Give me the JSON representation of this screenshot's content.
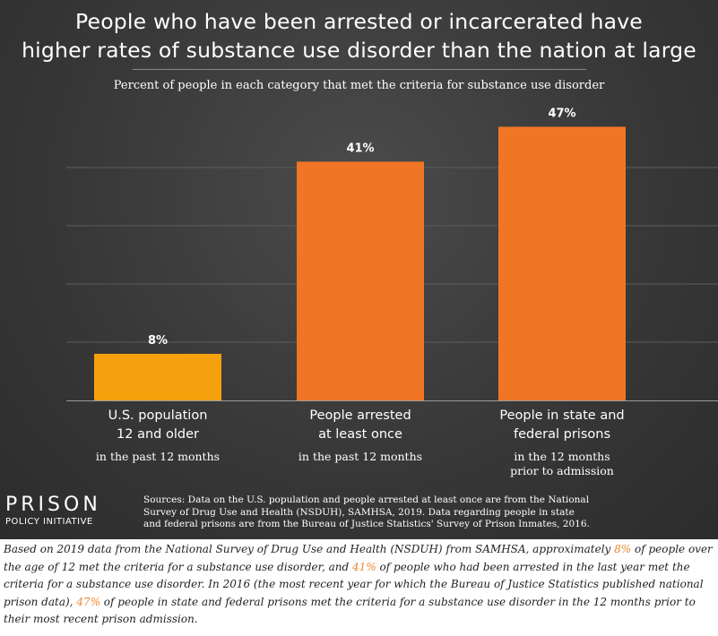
{
  "chart_data": {
    "type": "bar",
    "title_lines": [
      "People who have been arrested or incarcerated have",
      "higher rates of substance use disorder than the nation at large"
    ],
    "subtitle": "Percent of people in each category that met the criteria for substance use disorder",
    "categories": [
      "U.S. population 12 and older",
      "People arrested at least once",
      "People in state and federal prisons"
    ],
    "values": [
      8,
      41,
      47
    ],
    "value_labels": [
      "8%",
      "41%",
      "47%"
    ],
    "bar_colors": [
      "#f5a10e",
      "#f07626",
      "#f07626"
    ],
    "ylim": [
      0,
      50
    ],
    "grid_step": 10,
    "grid": true,
    "category_labels": [
      {
        "lines": [
          "U.S. population",
          "12 and older"
        ],
        "sub": [
          "in the past 12 months"
        ]
      },
      {
        "lines": [
          "People arrested",
          "at least once"
        ],
        "sub": [
          "in the past 12 months"
        ]
      },
      {
        "lines": [
          "People in state and",
          "federal prisons"
        ],
        "sub": [
          "in the 12 months",
          "prior to admission"
        ]
      }
    ]
  },
  "logo": {
    "name": "PRISON",
    "subname": "POLICY INITIATIVE"
  },
  "sources": "Sources: Data on the U.S. population and people arrested at least once are from the National Survey of Drug Use and Health (NSDUH), SAMHSA, 2019. Data regarding people in state and federal prisons are from the Bureau of Justice Statistics' Survey of Prison Inmates, 2016.",
  "caption": {
    "p1": "Based on 2019 data from the National Survey of Drug Use and Health (NSDUH) from SAMHSA, approximately ",
    "v1": "8%",
    "p2": " of people over the age of 12 met the criteria for a substance use disorder, and ",
    "v2": "41%",
    "p3": " of people who had been arrested in the last year met the criteria for a substance use disorder. In 2016 (the most recent year for which the Bureau of Justice Statistics published national prison data), ",
    "v3": "47%",
    "p4": " of people in state and federal prisons met the criteria for a substance use disorder in the 12 months prior to their most recent prison admission."
  }
}
